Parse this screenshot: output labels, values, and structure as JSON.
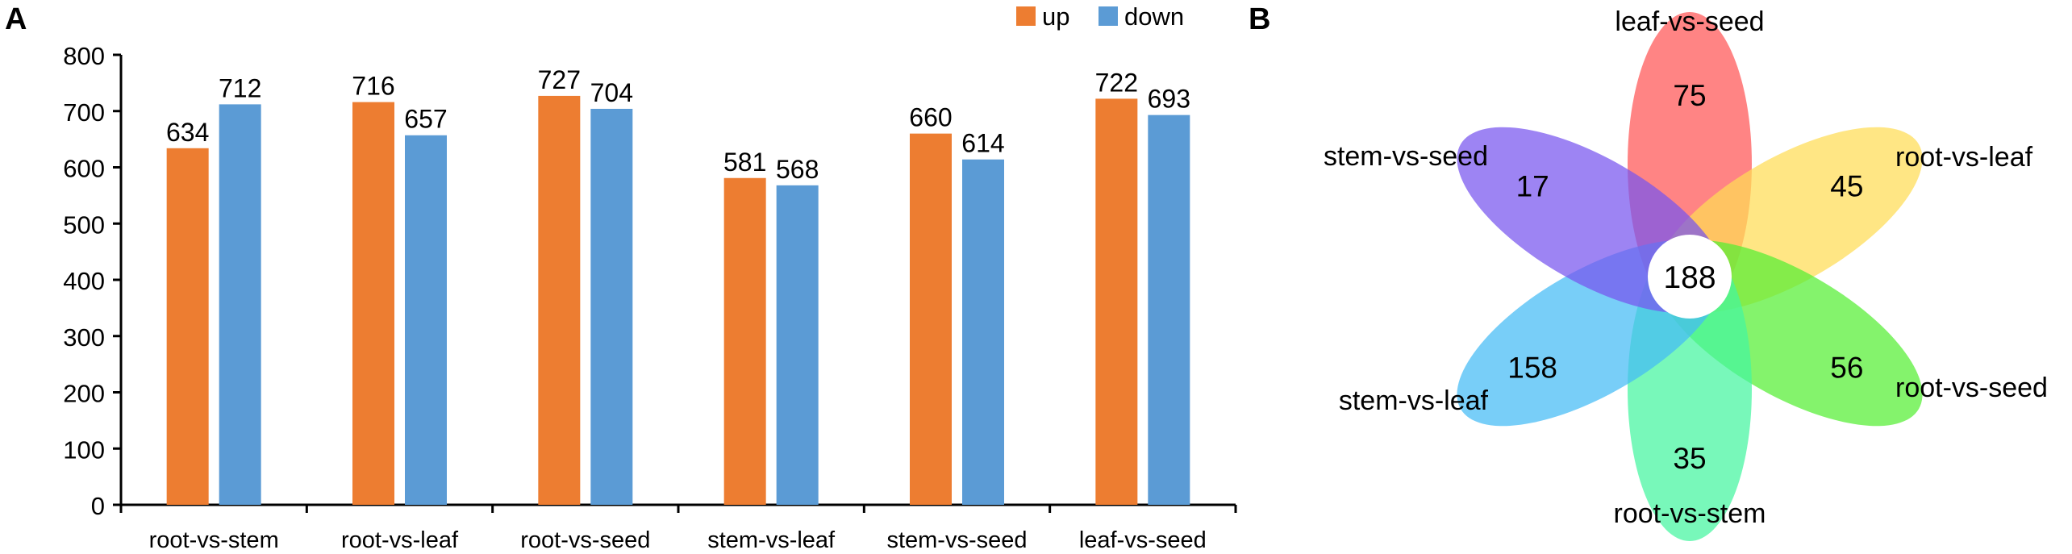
{
  "panels": {
    "a_label": "A",
    "b_label": "B"
  },
  "chart_data": [
    {
      "type": "bar",
      "panel": "A",
      "title": "",
      "xlabel": "",
      "ylabel": "",
      "categories": [
        "root-vs-stem",
        "root-vs-leaf",
        "root-vs-seed",
        "stem-vs-leaf",
        "stem-vs-seed",
        "leaf-vs-seed"
      ],
      "series": [
        {
          "name": "up",
          "color": "#ed7d31",
          "values": [
            634,
            716,
            727,
            581,
            660,
            722
          ]
        },
        {
          "name": "down",
          "color": "#5b9bd5",
          "values": [
            712,
            657,
            704,
            568,
            614,
            693
          ]
        }
      ],
      "ylim": [
        0,
        800
      ],
      "yticks": [
        0,
        100,
        200,
        300,
        400,
        500,
        600,
        700,
        800
      ],
      "grid": false,
      "data_labels": true,
      "legend_position": "top-right"
    },
    {
      "type": "venn",
      "panel": "B",
      "center_value": 188,
      "petals": [
        {
          "name": "leaf-vs-seed",
          "value": 75,
          "color": "#ff5555"
        },
        {
          "name": "root-vs-leaf",
          "value": 45,
          "color": "#ffdd55"
        },
        {
          "name": "root-vs-seed",
          "value": 56,
          "color": "#55ee33"
        },
        {
          "name": "root-vs-stem",
          "value": 35,
          "color": "#44f5a0"
        },
        {
          "name": "stem-vs-leaf",
          "value": 158,
          "color": "#44bbf5"
        },
        {
          "name": "stem-vs-seed",
          "value": 17,
          "color": "#7755ee"
        }
      ]
    }
  ]
}
